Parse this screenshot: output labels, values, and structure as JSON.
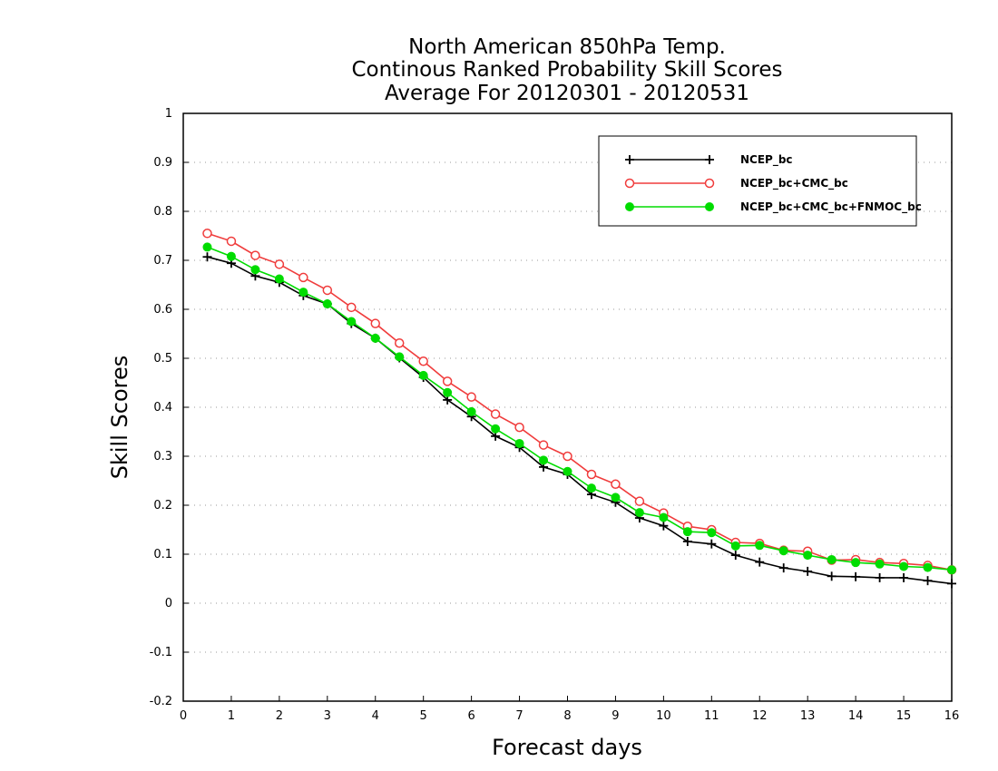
{
  "chart_data": {
    "type": "line",
    "title_lines": [
      "North American 850hPa Temp.",
      "Continous Ranked Probability Skill Scores",
      "Average For 20120301 - 20120531"
    ],
    "xlabel": "Forecast days",
    "ylabel": "Skill Scores",
    "xlim": [
      0,
      16
    ],
    "ylim": [
      -0.2,
      1
    ],
    "x_ticks": [
      0,
      1,
      2,
      3,
      4,
      5,
      6,
      7,
      8,
      9,
      10,
      11,
      12,
      13,
      14,
      15,
      16
    ],
    "y_ticks": [
      -0.2,
      -0.1,
      0,
      0.1,
      0.2,
      0.3,
      0.4,
      0.5,
      0.6,
      0.7,
      0.8,
      0.9,
      1
    ],
    "y_tick_labels": [
      "-0.2",
      "-0.1",
      "0",
      "0.1",
      "0.2",
      "0.3",
      "0.4",
      "0.5",
      "0.6",
      "0.7",
      "0.8",
      "0.9",
      "1"
    ],
    "grid": "horizontal dotted",
    "legend_position": "top-right",
    "x": [
      0.5,
      1,
      1.5,
      2,
      2.5,
      3,
      3.5,
      4,
      4.5,
      5,
      5.5,
      6,
      6.5,
      7,
      7.5,
      8,
      8.5,
      9,
      9.5,
      10,
      10.5,
      11,
      11.5,
      12,
      12.5,
      13,
      13.5,
      14,
      14.5,
      15,
      15.5,
      16
    ],
    "series": [
      {
        "name": "NCEP_bc",
        "color": "#000000",
        "marker": "plus",
        "values": [
          0.707,
          0.694,
          0.668,
          0.655,
          0.628,
          0.611,
          0.571,
          0.541,
          0.501,
          0.461,
          0.415,
          0.381,
          0.341,
          0.318,
          0.278,
          0.263,
          0.222,
          0.206,
          0.174,
          0.158,
          0.126,
          0.121,
          0.098,
          0.084,
          0.072,
          0.065,
          0.055,
          0.054,
          0.052,
          0.052,
          0.046,
          0.04
        ]
      },
      {
        "name": "NCEP_bc+CMC_bc",
        "color": "#f03c3c",
        "marker": "open-circle",
        "values": [
          0.755,
          0.739,
          0.71,
          0.692,
          0.665,
          0.639,
          0.604,
          0.571,
          0.531,
          0.494,
          0.453,
          0.421,
          0.386,
          0.359,
          0.323,
          0.3,
          0.263,
          0.243,
          0.208,
          0.184,
          0.157,
          0.15,
          0.124,
          0.122,
          0.108,
          0.106,
          0.088,
          0.089,
          0.083,
          0.081,
          0.077,
          0.068
        ]
      },
      {
        "name": "NCEP_bc+CMC_bc+FNMOC_bc",
        "color": "#00dc00",
        "marker": "filled-circle",
        "values": [
          0.727,
          0.708,
          0.681,
          0.662,
          0.635,
          0.611,
          0.575,
          0.541,
          0.503,
          0.465,
          0.43,
          0.391,
          0.356,
          0.326,
          0.292,
          0.269,
          0.235,
          0.216,
          0.185,
          0.175,
          0.146,
          0.144,
          0.117,
          0.118,
          0.107,
          0.098,
          0.089,
          0.083,
          0.08,
          0.075,
          0.073,
          0.068
        ]
      }
    ]
  }
}
